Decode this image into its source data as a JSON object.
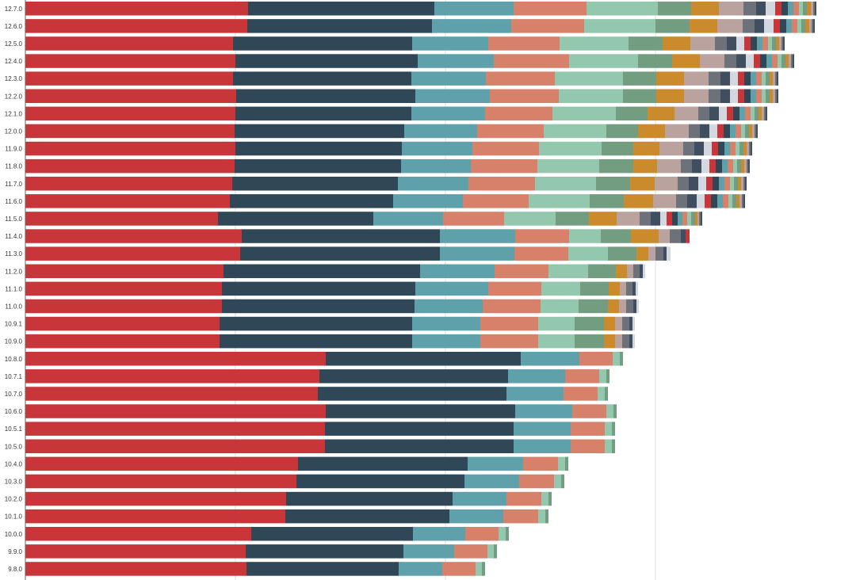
{
  "chart_data": {
    "type": "bar",
    "orientation": "horizontal",
    "stacked": true,
    "title": "",
    "xlabel": "",
    "ylabel": "",
    "grid": true,
    "legend": "none",
    "categories": [
      "12.7.0",
      "12.6.0",
      "12.5.0",
      "12.4.0",
      "12.3.0",
      "12.2.0",
      "12.1.0",
      "12.0.0",
      "11.9.0",
      "11.8.0",
      "11.7.0",
      "11.6.0",
      "11.5.0",
      "11.4.0",
      "11.3.0",
      "11.2.0",
      "11.1.0",
      "11.0.0",
      "10.9.1",
      "10.9.0",
      "10.8.0",
      "10.7.1",
      "10.7.0",
      "10.6.0",
      "10.5.1",
      "10.5.0",
      "10.4.0",
      "10.3.0",
      "10.2.0",
      "10.1.0",
      "10.0.0",
      "9.9.0",
      "9.8.0"
    ],
    "palette": [
      "#c8363a",
      "#2f4756",
      "#5fa1aa",
      "#d8816a",
      "#93c8ae",
      "#739d80",
      "#cb8a2b",
      "#baa39e",
      "#6c717a",
      "#404f5f",
      "#d3d8e0",
      "#c8363a",
      "#2f4756",
      "#5fa1aa",
      "#d8816a",
      "#93c8ae",
      "#739d80",
      "#cb8a2b",
      "#baa39e",
      "#6c717a",
      "#404f5f"
    ],
    "segments": [
      [
        281,
        235,
        100,
        92,
        90,
        42,
        35,
        31,
        16,
        12,
        12,
        8,
        8,
        7,
        7,
        5,
        5,
        5,
        3,
        2,
        2
      ],
      [
        280,
        233,
        100,
        92,
        90,
        43,
        35,
        32,
        15,
        12,
        12,
        8,
        8,
        7,
        7,
        5,
        5,
        5,
        3,
        2,
        2
      ],
      [
        262,
        226,
        96,
        90,
        87,
        43,
        35,
        31,
        15,
        12,
        10,
        8,
        8,
        7,
        7,
        5,
        5,
        4,
        3,
        2,
        2
      ],
      [
        265,
        230,
        96,
        95,
        87,
        43,
        35,
        31,
        15,
        12,
        10,
        8,
        8,
        7,
        7,
        5,
        5,
        4,
        3,
        2,
        2
      ],
      [
        262,
        225,
        94,
        87,
        86,
        42,
        35,
        31,
        15,
        12,
        10,
        8,
        8,
        7,
        7,
        5,
        5,
        4,
        3,
        2,
        2
      ],
      [
        266,
        226,
        94,
        87,
        81,
        42,
        35,
        31,
        15,
        12,
        10,
        8,
        8,
        7,
        7,
        5,
        5,
        4,
        3,
        2,
        2
      ],
      [
        265,
        222,
        93,
        85,
        80,
        40,
        34,
        30,
        14,
        12,
        10,
        8,
        8,
        7,
        7,
        5,
        5,
        4,
        3,
        2,
        2
      ],
      [
        264,
        214,
        92,
        84,
        79,
        40,
        34,
        30,
        14,
        12,
        10,
        8,
        8,
        7,
        7,
        5,
        5,
        4,
        3,
        2,
        2
      ],
      [
        265,
        210,
        89,
        84,
        79,
        40,
        33,
        30,
        14,
        12,
        10,
        8,
        8,
        7,
        7,
        5,
        5,
        4,
        3,
        2,
        2
      ],
      [
        264,
        210,
        88,
        84,
        78,
        43,
        30,
        30,
        14,
        12,
        10,
        8,
        8,
        7,
        7,
        5,
        5,
        4,
        3,
        2,
        2
      ],
      [
        261,
        209,
        89,
        84,
        77,
        43,
        31,
        29,
        14,
        12,
        10,
        8,
        8,
        7,
        7,
        5,
        5,
        4,
        3,
        2,
        2
      ],
      [
        258,
        206,
        88,
        83,
        77,
        43,
        37,
        29,
        14,
        12,
        10,
        8,
        8,
        7,
        7,
        5,
        5,
        4,
        3,
        2,
        2
      ],
      [
        243,
        196,
        88,
        77,
        65,
        42,
        35,
        29,
        14,
        12,
        8,
        7,
        7,
        6,
        6,
        5,
        5,
        3,
        2,
        2,
        2
      ],
      [
        273,
        250,
        95,
        68,
        40,
        38,
        35,
        14,
        14,
        6,
        0,
        5
      ],
      [
        271,
        252,
        94,
        68,
        50,
        36,
        15,
        9,
        10,
        4,
        5
      ],
      [
        250,
        248,
        94,
        68,
        50,
        35,
        14,
        8,
        8,
        4,
        3
      ],
      [
        248,
        244,
        92,
        67,
        49,
        36,
        14,
        8,
        8,
        4,
        3
      ],
      [
        248,
        243,
        86,
        73,
        48,
        37,
        14,
        9,
        9,
        4,
        3
      ],
      [
        245,
        243,
        86,
        73,
        46,
        37,
        14,
        9,
        9,
        4,
        3
      ],
      [
        245,
        243,
        86,
        73,
        46,
        37,
        14,
        9,
        9,
        4,
        3
      ],
      [
        379,
        246,
        74,
        42,
        9,
        4
      ],
      [
        371,
        238,
        72,
        43,
        9,
        4
      ],
      [
        369,
        238,
        72,
        43,
        9,
        4
      ],
      [
        379,
        239,
        72,
        43,
        9,
        4
      ],
      [
        378,
        238,
        72,
        43,
        9,
        4
      ],
      [
        378,
        238,
        72,
        43,
        9,
        4
      ],
      [
        344,
        214,
        70,
        44,
        9,
        4
      ],
      [
        342,
        212,
        69,
        44,
        9,
        4
      ],
      [
        329,
        210,
        68,
        44,
        9,
        4
      ],
      [
        328,
        207,
        68,
        44,
        9,
        4
      ],
      [
        285,
        204,
        66,
        42,
        9,
        4
      ],
      [
        278,
        199,
        64,
        42,
        8,
        4
      ],
      [
        279,
        192,
        55,
        42,
        8,
        4
      ]
    ],
    "xlim": [
      0,
      1050
    ]
  }
}
